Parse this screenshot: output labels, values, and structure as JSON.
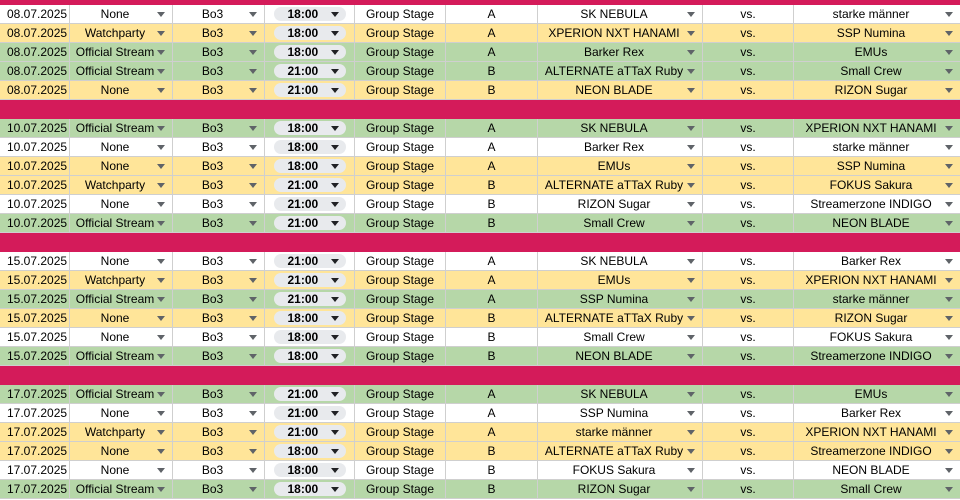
{
  "colors": {
    "separator": "#d41b5a",
    "none_row": "#ffffff",
    "watchparty_row": "#ffe599",
    "stream_row": "#b6d7a8",
    "time_chip": "#e8eaed"
  },
  "icons": {
    "dropdown": "dropdown-arrow-icon"
  },
  "days": [
    {
      "matches": [
        {
          "date": "08.07.2025",
          "stream": "None",
          "format": "Bo3",
          "time": "18:00",
          "stage": "Group Stage",
          "group": "A",
          "team1": "SK NEBULA",
          "vs": "vs.",
          "team2": "starke männer",
          "row": "white"
        },
        {
          "date": "08.07.2025",
          "stream": "Watchparty",
          "format": "Bo3",
          "time": "18:00",
          "stage": "Group Stage",
          "group": "A",
          "team1": "XPERION NXT HANAMI",
          "vs": "vs.",
          "team2": "SSP Numina",
          "row": "yellow"
        },
        {
          "date": "08.07.2025",
          "stream": "Official Stream",
          "format": "Bo3",
          "time": "18:00",
          "stage": "Group Stage",
          "group": "A",
          "team1": "Barker Rex",
          "vs": "vs.",
          "team2": "EMUs",
          "row": "green"
        },
        {
          "date": "08.07.2025",
          "stream": "Official Stream",
          "format": "Bo3",
          "time": "21:00",
          "stage": "Group Stage",
          "group": "B",
          "team1": "ALTERNATE aTTaX Ruby",
          "vs": "vs.",
          "team2": "Small Crew",
          "row": "green"
        },
        {
          "date": "08.07.2025",
          "stream": "None",
          "format": "Bo3",
          "time": "21:00",
          "stage": "Group Stage",
          "group": "B",
          "team1": "NEON BLADE",
          "vs": "vs.",
          "team2": "RIZON Sugar",
          "row": "yellow"
        }
      ]
    },
    {
      "matches": [
        {
          "date": "10.07.2025",
          "stream": "Official Stream",
          "format": "Bo3",
          "time": "18:00",
          "stage": "Group Stage",
          "group": "A",
          "team1": "SK NEBULA",
          "vs": "vs.",
          "team2": "XPERION NXT HANAMI",
          "row": "green"
        },
        {
          "date": "10.07.2025",
          "stream": "None",
          "format": "Bo3",
          "time": "18:00",
          "stage": "Group Stage",
          "group": "A",
          "team1": "Barker Rex",
          "vs": "vs.",
          "team2": "starke männer",
          "row": "white"
        },
        {
          "date": "10.07.2025",
          "stream": "None",
          "format": "Bo3",
          "time": "18:00",
          "stage": "Group Stage",
          "group": "A",
          "team1": "EMUs",
          "vs": "vs.",
          "team2": "SSP Numina",
          "row": "yellow"
        },
        {
          "date": "10.07.2025",
          "stream": "Watchparty",
          "format": "Bo3",
          "time": "21:00",
          "stage": "Group Stage",
          "group": "B",
          "team1": "ALTERNATE aTTaX Ruby",
          "vs": "vs.",
          "team2": "FOKUS Sakura",
          "row": "yellow"
        },
        {
          "date": "10.07.2025",
          "stream": "None",
          "format": "Bo3",
          "time": "21:00",
          "stage": "Group Stage",
          "group": "B",
          "team1": "RIZON Sugar",
          "vs": "vs.",
          "team2": "Streamerzone INDIGO",
          "row": "white"
        },
        {
          "date": "10.07.2025",
          "stream": "Official Stream",
          "format": "Bo3",
          "time": "21:00",
          "stage": "Group Stage",
          "group": "B",
          "team1": "Small Crew",
          "vs": "vs.",
          "team2": "NEON BLADE",
          "row": "green"
        }
      ]
    },
    {
      "matches": [
        {
          "date": "15.07.2025",
          "stream": "None",
          "format": "Bo3",
          "time": "21:00",
          "stage": "Group Stage",
          "group": "A",
          "team1": "SK NEBULA",
          "vs": "vs.",
          "team2": "Barker Rex",
          "row": "white"
        },
        {
          "date": "15.07.2025",
          "stream": "Watchparty",
          "format": "Bo3",
          "time": "21:00",
          "stage": "Group Stage",
          "group": "A",
          "team1": "EMUs",
          "vs": "vs.",
          "team2": "XPERION NXT HANAMI",
          "row": "yellow"
        },
        {
          "date": "15.07.2025",
          "stream": "Official Stream",
          "format": "Bo3",
          "time": "21:00",
          "stage": "Group Stage",
          "group": "A",
          "team1": "SSP Numina",
          "vs": "vs.",
          "team2": "starke männer",
          "row": "green"
        },
        {
          "date": "15.07.2025",
          "stream": "None",
          "format": "Bo3",
          "time": "18:00",
          "stage": "Group Stage",
          "group": "B",
          "team1": "ALTERNATE aTTaX Ruby",
          "vs": "vs.",
          "team2": "RIZON Sugar",
          "row": "yellow"
        },
        {
          "date": "15.07.2025",
          "stream": "None",
          "format": "Bo3",
          "time": "18:00",
          "stage": "Group Stage",
          "group": "B",
          "team1": "Small Crew",
          "vs": "vs.",
          "team2": "FOKUS Sakura",
          "row": "white"
        },
        {
          "date": "15.07.2025",
          "stream": "Official Stream",
          "format": "Bo3",
          "time": "18:00",
          "stage": "Group Stage",
          "group": "B",
          "team1": "NEON BLADE",
          "vs": "vs.",
          "team2": "Streamerzone INDIGO",
          "row": "green"
        }
      ]
    },
    {
      "matches": [
        {
          "date": "17.07.2025",
          "stream": "Official Stream",
          "format": "Bo3",
          "time": "21:00",
          "stage": "Group Stage",
          "group": "A",
          "team1": "SK NEBULA",
          "vs": "vs.",
          "team2": "EMUs",
          "row": "green"
        },
        {
          "date": "17.07.2025",
          "stream": "None",
          "format": "Bo3",
          "time": "21:00",
          "stage": "Group Stage",
          "group": "A",
          "team1": "SSP Numina",
          "vs": "vs.",
          "team2": "Barker Rex",
          "row": "white"
        },
        {
          "date": "17.07.2025",
          "stream": "Watchparty",
          "format": "Bo3",
          "time": "21:00",
          "stage": "Group Stage",
          "group": "A",
          "team1": "starke männer",
          "vs": "vs.",
          "team2": "XPERION NXT HANAMI",
          "row": "yellow"
        },
        {
          "date": "17.07.2025",
          "stream": "None",
          "format": "Bo3",
          "time": "18:00",
          "stage": "Group Stage",
          "group": "B",
          "team1": "ALTERNATE aTTaX Ruby",
          "vs": "vs.",
          "team2": "Streamerzone INDIGO",
          "row": "yellow"
        },
        {
          "date": "17.07.2025",
          "stream": "None",
          "format": "Bo3",
          "time": "18:00",
          "stage": "Group Stage",
          "group": "B",
          "team1": "FOKUS Sakura",
          "vs": "vs.",
          "team2": "NEON BLADE",
          "row": "white"
        },
        {
          "date": "17.07.2025",
          "stream": "Official Stream",
          "format": "Bo3",
          "time": "18:00",
          "stage": "Group Stage",
          "group": "B",
          "team1": "RIZON Sugar",
          "vs": "vs.",
          "team2": "Small Crew",
          "row": "green"
        }
      ]
    }
  ]
}
